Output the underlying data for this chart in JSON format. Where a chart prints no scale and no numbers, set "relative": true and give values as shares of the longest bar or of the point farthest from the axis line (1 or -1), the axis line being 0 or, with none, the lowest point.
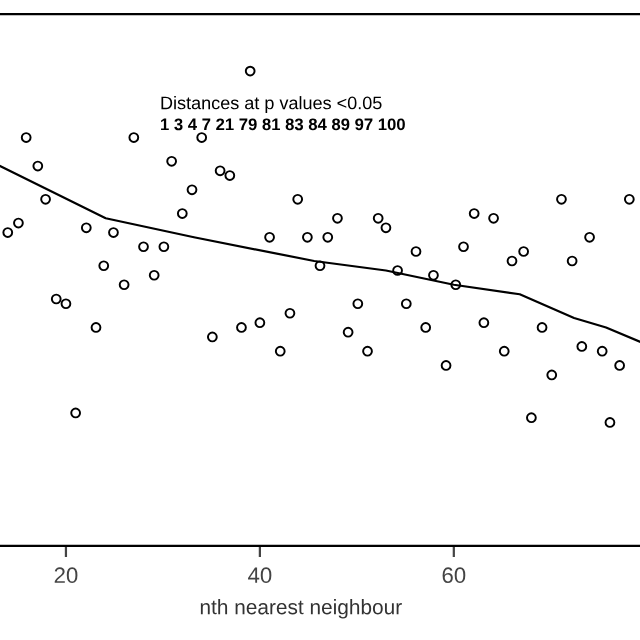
{
  "chart_data": {
    "type": "scatter",
    "xlabel": "nth nearest neighbour",
    "relative": true,
    "marker": "circle",
    "grid": false,
    "legend": false,
    "annotations": [
      "Distances at p values <0.05",
      "1 3 4 7 21 79 81 83 84 89 97 100"
    ],
    "xlim": [
      13.2,
      79.2
    ],
    "xticks": [
      20,
      40,
      60
    ],
    "tick_labels": "x",
    "series": [
      {
        "color": "#000000",
        "x": [
          39.0,
          15.9,
          27.0,
          34.0,
          17.1,
          30.9,
          35.9,
          36.9,
          33.0,
          17.9,
          43.9,
          32.0,
          15.1,
          14.0,
          22.1,
          24.9,
          41.0,
          44.9,
          28.0,
          30.1,
          23.9,
          29.1,
          26.0,
          19.0,
          20.0,
          43.1,
          40.0,
          38.1,
          35.1,
          42.1,
          23.1,
          21.0,
          46.2,
          71.1,
          78.1,
          48.0,
          52.2,
          53.0,
          62.1,
          64.1,
          47.0,
          74.0,
          56.1,
          61.0,
          66.0,
          67.2,
          72.2,
          54.2,
          57.9,
          60.2,
          50.1,
          55.1,
          49.1,
          51.1,
          57.1,
          59.2,
          63.1,
          65.2,
          69.1,
          70.1,
          73.2,
          75.3,
          77.1,
          68.0,
          76.1
        ],
        "values": [
          1.0,
          0.86,
          0.86,
          0.86,
          0.8,
          0.81,
          0.79,
          0.78,
          0.75,
          0.73,
          0.73,
          0.7,
          0.68,
          0.66,
          0.67,
          0.66,
          0.65,
          0.65,
          0.63,
          0.63,
          0.59,
          0.57,
          0.55,
          0.52,
          0.51,
          0.49,
          0.47,
          0.46,
          0.44,
          0.41,
          0.46,
          0.28,
          0.59,
          0.73,
          0.73,
          0.69,
          0.69,
          0.67,
          0.7,
          0.69,
          0.65,
          0.65,
          0.62,
          0.63,
          0.6,
          0.62,
          0.6,
          0.58,
          0.57,
          0.55,
          0.51,
          0.51,
          0.45,
          0.41,
          0.46,
          0.38,
          0.47,
          0.41,
          0.46,
          0.36,
          0.42,
          0.41,
          0.38,
          0.27,
          0.26
        ]
      },
      {
        "type": "line",
        "marker": "none",
        "color": "#000000",
        "x": [
          13.2,
          24.1,
          33.2,
          45.6,
          53.0,
          60.0,
          66.8,
          72.4,
          75.7,
          79.2
        ],
        "values": [
          0.8,
          0.69,
          0.65,
          0.6,
          0.58,
          0.55,
          0.53,
          0.48,
          0.46,
          0.43
        ]
      }
    ]
  }
}
